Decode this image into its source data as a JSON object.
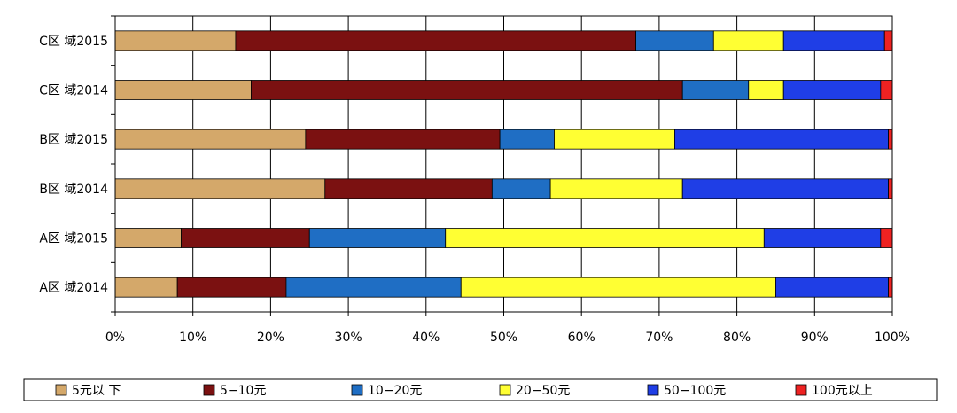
{
  "chart_data": {
    "type": "bar",
    "orientation": "horizontal",
    "stacked": "percent",
    "categories": [
      "C区域2015",
      "C区域2014",
      "B区域2015",
      "B区域2014",
      "A区域2015",
      "A区域2014"
    ],
    "category_labels": [
      "C区 域2015",
      "C区 域2014",
      "B区 域2015",
      "B区 域2014",
      "A区 域2015",
      "A区 域2014"
    ],
    "series": [
      {
        "name": "5元以下",
        "label": "5元以 下",
        "color": "#d4a86a",
        "values": [
          15.5,
          17.5,
          24.5,
          27.0,
          8.5,
          8.0
        ]
      },
      {
        "name": "5-10元",
        "label": "5−10元",
        "color": "#7b1111",
        "values": [
          51.5,
          55.5,
          25.0,
          21.5,
          16.5,
          14.0
        ]
      },
      {
        "name": "10-20元",
        "label": "10−20元",
        "color": "#1f6ec4",
        "values": [
          10.0,
          8.5,
          7.0,
          7.5,
          17.5,
          22.5
        ]
      },
      {
        "name": "20-50元",
        "label": "20−50元",
        "color": "#ffff33",
        "values": [
          9.0,
          4.5,
          15.5,
          17.0,
          41.0,
          40.5
        ]
      },
      {
        "name": "50-100元",
        "label": "50−100元",
        "color": "#1f3ee6",
        "values": [
          13.0,
          12.5,
          27.5,
          26.5,
          15.0,
          14.5
        ]
      },
      {
        "name": "100元以上",
        "label": "100元以上",
        "color": "#ee2222",
        "values": [
          1.0,
          1.5,
          0.5,
          0.5,
          1.5,
          0.5
        ]
      }
    ],
    "x_ticks": [
      "0%",
      "10%",
      "20%",
      "30%",
      "40%",
      "50%",
      "60%",
      "70%",
      "80%",
      "90%",
      "100%"
    ],
    "xlim": [
      0,
      100
    ],
    "grid": "vertical",
    "legend_position": "bottom"
  }
}
